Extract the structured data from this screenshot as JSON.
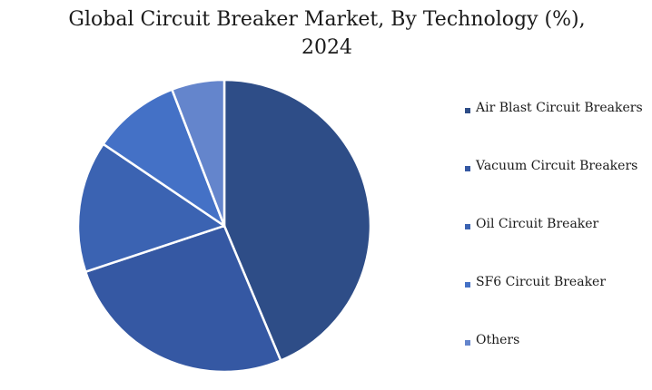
{
  "chart_data": {
    "type": "pie",
    "title_line1": "Global Circuit Breaker Market, By Technology (%),",
    "title_line2": "2024",
    "categories": [
      "Air Blast Circuit Breakers",
      "Vacuum Circuit Breakers",
      "Oil Circuit Breaker",
      "SF6 Circuit Breaker",
      "Others"
    ],
    "values": [
      45,
      27,
      15,
      10,
      6
    ],
    "colors": [
      "#2e4d87",
      "#3558a3",
      "#3b63b2",
      "#4471c6",
      "#6485cc"
    ],
    "legend_position": "right",
    "start_angle": "12 o'clock, clockwise"
  }
}
